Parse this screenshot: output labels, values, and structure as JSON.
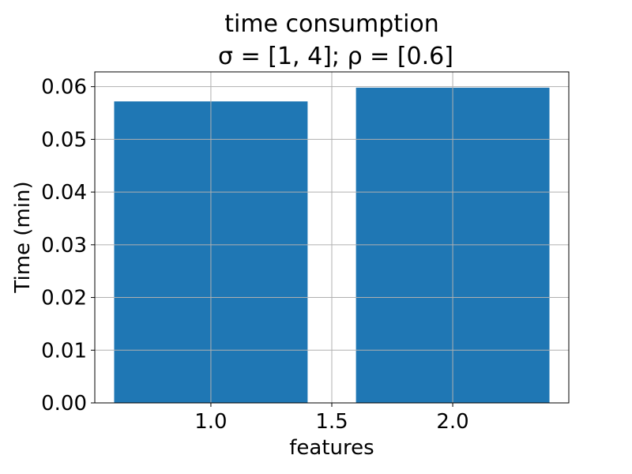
{
  "chart_data": {
    "type": "bar",
    "title_line1": "time consumption",
    "title_line2": "σ = [1, 4];  ρ = [0.6]",
    "xlabel": "features",
    "ylabel": "Time (min)",
    "x": [
      1.0,
      2.0
    ],
    "values": [
      0.0572,
      0.0598
    ],
    "bar_width": 0.8,
    "xlim": [
      0.52,
      2.48
    ],
    "ylim": [
      0,
      0.0628
    ],
    "xticks": [
      1.0,
      1.5,
      2.0
    ],
    "xtick_labels": [
      "1.0",
      "1.5",
      "2.0"
    ],
    "yticks": [
      0,
      0.01,
      0.02,
      0.03,
      0.04,
      0.05,
      0.06
    ],
    "ytick_labels": [
      "0.00",
      "0.01",
      "0.02",
      "0.03",
      "0.04",
      "0.05",
      "0.06"
    ],
    "grid": true,
    "bar_color": "#1f77b4"
  }
}
